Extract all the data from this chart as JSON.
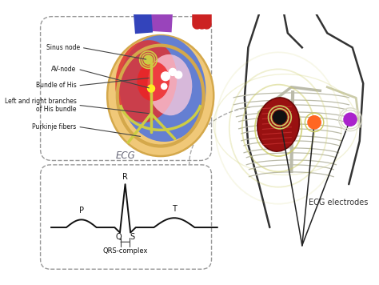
{
  "bg_color": "#ffffff",
  "ecg_label": "ECG",
  "ecg_electrodes_label": "ECG electrodes",
  "qrs_label": "QRS-complex",
  "dashed_color": "#999999",
  "line_color": "#333333",
  "purkinje_color": "#cccc44",
  "ecg_color": "#111111",
  "heart_tan": "#f0c878",
  "heart_blue": "#4466cc",
  "heart_red": "#cc3333",
  "heart_purple_vessel": "#9944cc",
  "heart_pink": "#ffaabb",
  "sinus_yellow": "#ffee22",
  "av_yellow": "#ffee22",
  "electrode_black": "#111111",
  "electrode_orange": "#ff6622",
  "electrode_purple": "#aa22cc",
  "body_line": "#333333",
  "rib_color": "#bbbbaa",
  "field_color": "#cccc66"
}
